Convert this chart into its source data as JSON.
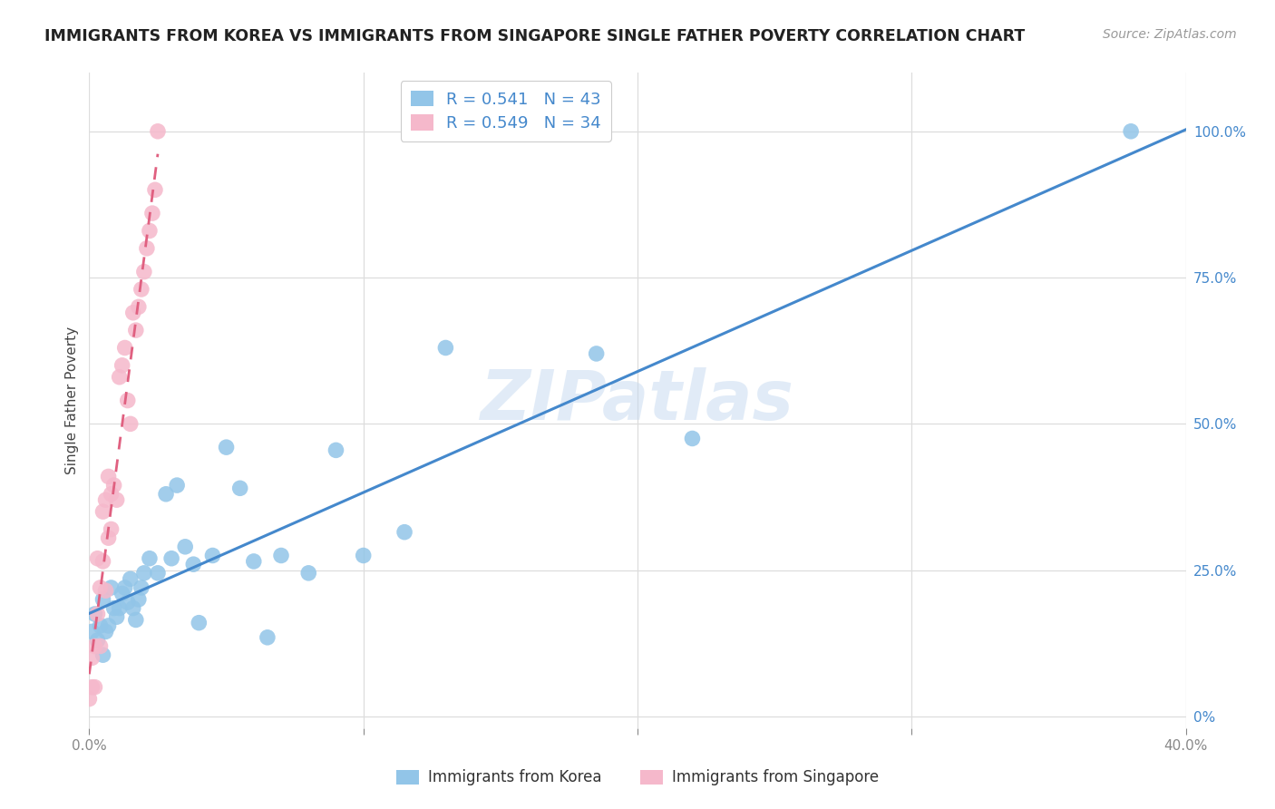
{
  "title": "IMMIGRANTS FROM KOREA VS IMMIGRANTS FROM SINGAPORE SINGLE FATHER POVERTY CORRELATION CHART",
  "source": "Source: ZipAtlas.com",
  "ylabel": "Single Father Poverty",
  "xlim": [
    0,
    0.4
  ],
  "ylim": [
    -0.02,
    1.1
  ],
  "ytick_right": [
    0.0,
    0.25,
    0.5,
    0.75,
    1.0
  ],
  "ytick_right_labels": [
    "0%",
    "25.0%",
    "50.0%",
    "75.0%",
    "100.0%"
  ],
  "korea_R": 0.541,
  "korea_N": 43,
  "singapore_R": 0.549,
  "singapore_N": 34,
  "korea_color": "#92c5e8",
  "singapore_color": "#f5b8cb",
  "korea_line_color": "#4488cc",
  "singapore_line_color": "#e06080",
  "background_color": "#ffffff",
  "watermark": "ZIPatlas",
  "korea_x": [
    0.001,
    0.002,
    0.003,
    0.004,
    0.005,
    0.005,
    0.006,
    0.007,
    0.008,
    0.009,
    0.01,
    0.011,
    0.012,
    0.013,
    0.014,
    0.015,
    0.016,
    0.017,
    0.018,
    0.019,
    0.02,
    0.022,
    0.025,
    0.028,
    0.03,
    0.032,
    0.035,
    0.038,
    0.04,
    0.045,
    0.05,
    0.055,
    0.06,
    0.065,
    0.07,
    0.08,
    0.09,
    0.1,
    0.115,
    0.13,
    0.185,
    0.22,
    0.38
  ],
  "korea_y": [
    0.145,
    0.175,
    0.13,
    0.155,
    0.105,
    0.2,
    0.145,
    0.155,
    0.22,
    0.185,
    0.17,
    0.185,
    0.21,
    0.22,
    0.195,
    0.235,
    0.185,
    0.165,
    0.2,
    0.22,
    0.245,
    0.27,
    0.245,
    0.38,
    0.27,
    0.395,
    0.29,
    0.26,
    0.16,
    0.275,
    0.46,
    0.39,
    0.265,
    0.135,
    0.275,
    0.245,
    0.455,
    0.275,
    0.315,
    0.63,
    0.62,
    0.475,
    1.0
  ],
  "singapore_x": [
    0.0,
    0.001,
    0.001,
    0.002,
    0.002,
    0.003,
    0.003,
    0.004,
    0.004,
    0.005,
    0.005,
    0.006,
    0.006,
    0.007,
    0.007,
    0.008,
    0.008,
    0.009,
    0.01,
    0.011,
    0.012,
    0.013,
    0.014,
    0.015,
    0.016,
    0.017,
    0.018,
    0.019,
    0.02,
    0.021,
    0.022,
    0.023,
    0.024,
    0.025
  ],
  "singapore_y": [
    0.03,
    0.05,
    0.1,
    0.05,
    0.12,
    0.175,
    0.27,
    0.12,
    0.22,
    0.265,
    0.35,
    0.215,
    0.37,
    0.305,
    0.41,
    0.32,
    0.38,
    0.395,
    0.37,
    0.58,
    0.6,
    0.63,
    0.54,
    0.5,
    0.69,
    0.66,
    0.7,
    0.73,
    0.76,
    0.8,
    0.83,
    0.86,
    0.9,
    1.0
  ]
}
